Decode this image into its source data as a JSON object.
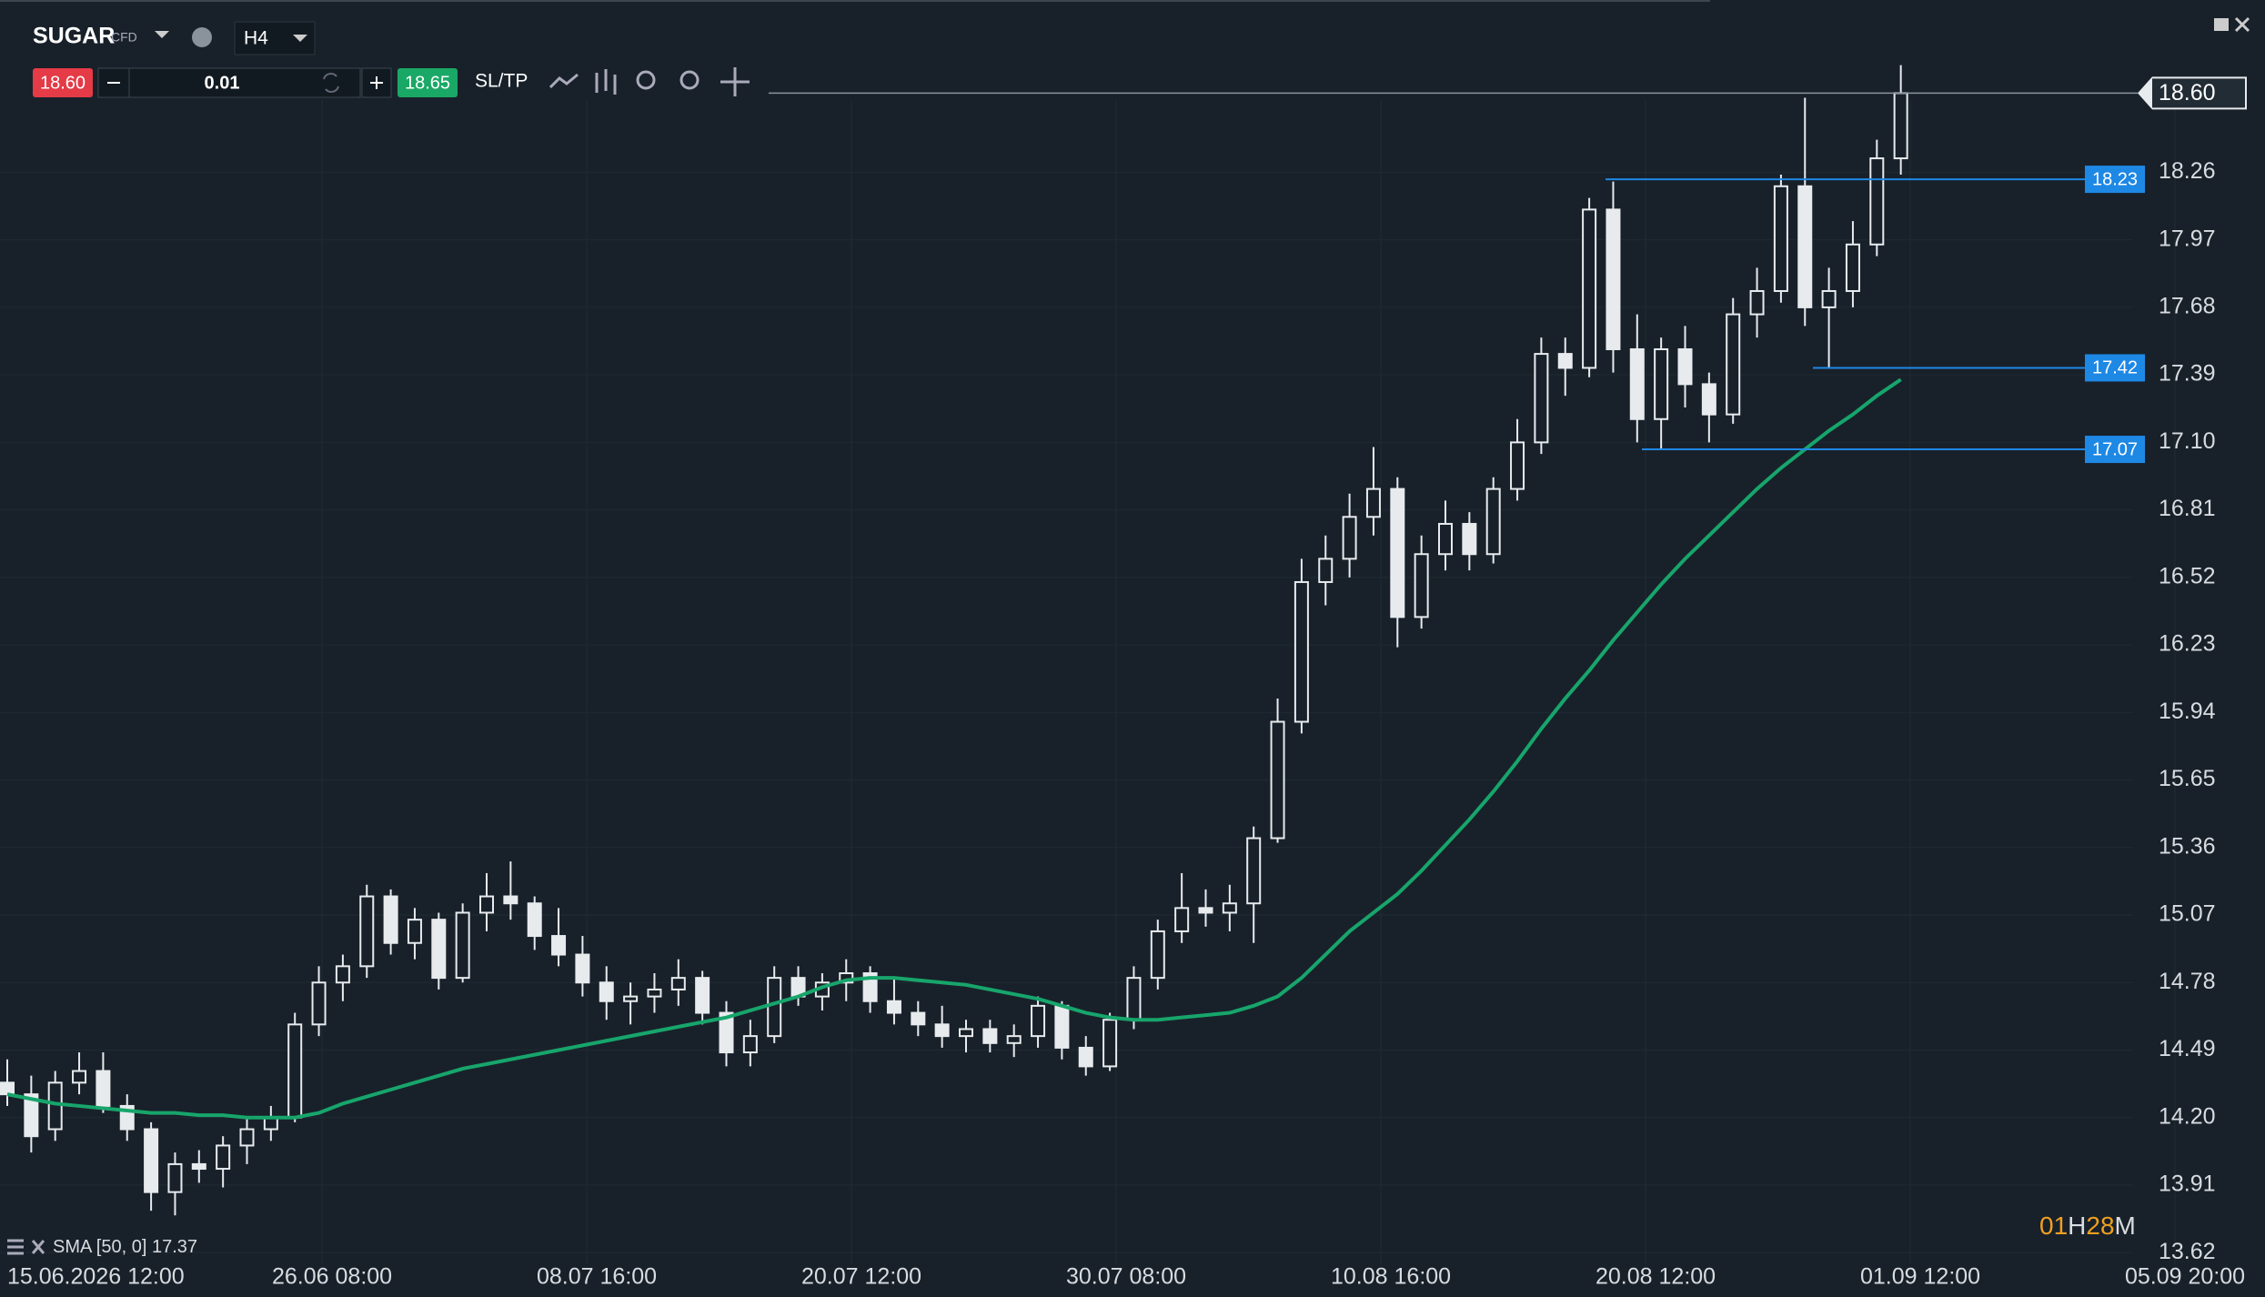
{
  "toolbar": {
    "symbol": "SUGAR",
    "symbol_type": "CFD",
    "timeframe": "H4",
    "sell_price": "18.60",
    "lot": "0.01",
    "buy_price": "18.65",
    "sltp": "SL/TP"
  },
  "timer": {
    "hours": "01",
    "h": "H",
    "minutes": "28",
    "m": "M"
  },
  "chart_data": {
    "type": "candlestick",
    "x_labels": [
      "15.06.2026 12:00",
      "26.06 08:00",
      "08.07 16:00",
      "20.07 12:00",
      "30.07 08:00",
      "10.08 16:00",
      "20.08 12:00",
      "01.09 12:00",
      "05.09 20:00"
    ],
    "ylim": [
      13.57,
      19.0
    ],
    "yticks": [
      13.62,
      13.91,
      {
        "value": 14.2,
        "label": "14.20"
      },
      14.49,
      14.78,
      15.07,
      15.36,
      15.65,
      15.94,
      16.23,
      16.52,
      16.81,
      {
        "value": 17.1,
        "label": "17.10"
      },
      17.39,
      17.68,
      17.97,
      18.26
    ],
    "grid": true,
    "up_color": "#e8ebee",
    "down_color": "#e8ebee",
    "candles": [
      [
        14.35,
        14.45,
        14.25,
        14.3
      ],
      [
        14.3,
        14.38,
        14.05,
        14.12
      ],
      [
        14.15,
        14.4,
        14.1,
        14.35
      ],
      [
        14.35,
        14.48,
        14.3,
        14.4
      ],
      [
        14.4,
        14.48,
        14.22,
        14.25
      ],
      [
        14.25,
        14.3,
        14.1,
        14.15
      ],
      [
        14.15,
        14.18,
        13.8,
        13.88
      ],
      [
        13.88,
        14.05,
        13.78,
        14.0
      ],
      [
        14.0,
        14.06,
        13.92,
        13.98
      ],
      [
        13.98,
        14.12,
        13.9,
        14.08
      ],
      [
        14.08,
        14.2,
        14.0,
        14.15
      ],
      [
        14.15,
        14.25,
        14.1,
        14.2
      ],
      [
        14.2,
        14.65,
        14.18,
        14.6
      ],
      [
        14.6,
        14.85,
        14.55,
        14.78
      ],
      [
        14.78,
        14.9,
        14.7,
        14.85
      ],
      [
        14.85,
        15.2,
        14.8,
        15.15
      ],
      [
        15.15,
        15.18,
        14.9,
        14.95
      ],
      [
        14.95,
        15.1,
        14.88,
        15.05
      ],
      [
        15.05,
        15.08,
        14.75,
        14.8
      ],
      [
        14.8,
        15.12,
        14.78,
        15.08
      ],
      [
        15.08,
        15.25,
        15.0,
        15.15
      ],
      [
        15.15,
        15.3,
        15.05,
        15.12
      ],
      [
        15.12,
        15.15,
        14.92,
        14.98
      ],
      [
        14.98,
        15.1,
        14.85,
        14.9
      ],
      [
        14.9,
        14.98,
        14.72,
        14.78
      ],
      [
        14.78,
        14.85,
        14.62,
        14.7
      ],
      [
        14.7,
        14.78,
        14.6,
        14.72
      ],
      [
        14.72,
        14.82,
        14.65,
        14.75
      ],
      [
        14.75,
        14.88,
        14.68,
        14.8
      ],
      [
        14.8,
        14.83,
        14.6,
        14.65
      ],
      [
        14.65,
        14.7,
        14.42,
        14.48
      ],
      [
        14.48,
        14.62,
        14.42,
        14.55
      ],
      [
        14.55,
        14.85,
        14.52,
        14.8
      ],
      [
        14.8,
        14.85,
        14.68,
        14.72
      ],
      [
        14.72,
        14.82,
        14.66,
        14.78
      ],
      [
        14.78,
        14.88,
        14.7,
        14.82
      ],
      [
        14.82,
        14.85,
        14.65,
        14.7
      ],
      [
        14.7,
        14.8,
        14.6,
        14.65
      ],
      [
        14.65,
        14.7,
        14.55,
        14.6
      ],
      [
        14.6,
        14.68,
        14.5,
        14.55
      ],
      [
        14.55,
        14.62,
        14.48,
        14.58
      ],
      [
        14.58,
        14.62,
        14.48,
        14.52
      ],
      [
        14.52,
        14.6,
        14.46,
        14.55
      ],
      [
        14.55,
        14.72,
        14.5,
        14.68
      ],
      [
        14.68,
        14.7,
        14.45,
        14.5
      ],
      [
        14.5,
        14.55,
        14.38,
        14.42
      ],
      [
        14.42,
        14.65,
        14.4,
        14.62
      ],
      [
        14.62,
        14.85,
        14.58,
        14.8
      ],
      [
        14.8,
        15.05,
        14.75,
        15.0
      ],
      [
        15.0,
        15.25,
        14.95,
        15.1
      ],
      [
        15.1,
        15.18,
        15.02,
        15.08
      ],
      [
        15.08,
        15.2,
        15.0,
        15.12
      ],
      [
        15.12,
        15.45,
        14.95,
        15.4
      ],
      [
        15.4,
        16.0,
        15.38,
        15.9
      ],
      [
        15.9,
        16.6,
        15.85,
        16.5
      ],
      [
        16.5,
        16.7,
        16.4,
        16.6
      ],
      [
        16.6,
        16.88,
        16.52,
        16.78
      ],
      [
        16.78,
        17.08,
        16.7,
        16.9
      ],
      [
        16.9,
        16.95,
        16.22,
        16.35
      ],
      [
        16.35,
        16.7,
        16.3,
        16.62
      ],
      [
        16.62,
        16.85,
        16.55,
        16.75
      ],
      [
        16.75,
        16.8,
        16.55,
        16.62
      ],
      [
        16.62,
        16.95,
        16.58,
        16.9
      ],
      [
        16.9,
        17.2,
        16.85,
        17.1
      ],
      [
        17.1,
        17.55,
        17.05,
        17.48
      ],
      [
        17.48,
        17.55,
        17.3,
        17.42
      ],
      [
        17.42,
        18.15,
        17.38,
        18.1
      ],
      [
        18.1,
        18.22,
        17.4,
        17.5
      ],
      [
        17.5,
        17.65,
        17.1,
        17.2
      ],
      [
        17.2,
        17.55,
        17.07,
        17.5
      ],
      [
        17.5,
        17.6,
        17.25,
        17.35
      ],
      [
        17.35,
        17.4,
        17.1,
        17.22
      ],
      [
        17.22,
        17.72,
        17.18,
        17.65
      ],
      [
        17.65,
        17.85,
        17.55,
        17.75
      ],
      [
        17.75,
        18.25,
        17.7,
        18.2
      ],
      [
        18.2,
        18.58,
        17.6,
        17.68
      ],
      [
        17.68,
        17.85,
        17.42,
        17.75
      ],
      [
        17.75,
        18.05,
        17.68,
        17.95
      ],
      [
        17.95,
        18.4,
        17.9,
        18.32
      ],
      [
        18.32,
        18.72,
        18.25,
        18.6
      ]
    ],
    "sma": {
      "name": "SMA [50, 0]",
      "color": "#17a56b",
      "values": [
        14.3,
        14.28,
        14.26,
        14.25,
        14.24,
        14.23,
        14.22,
        14.22,
        14.21,
        14.21,
        14.2,
        14.2,
        14.2,
        14.22,
        14.26,
        14.29,
        14.32,
        14.35,
        14.38,
        14.41,
        14.43,
        14.45,
        14.47,
        14.49,
        14.51,
        14.53,
        14.55,
        14.57,
        14.59,
        14.61,
        14.63,
        14.66,
        14.69,
        14.72,
        14.76,
        14.79,
        14.8,
        14.8,
        14.79,
        14.78,
        14.77,
        14.75,
        14.73,
        14.71,
        14.68,
        14.65,
        14.63,
        14.62,
        14.62,
        14.63,
        14.64,
        14.65,
        14.68,
        14.72,
        14.8,
        14.9,
        15.0,
        15.08,
        15.16,
        15.26,
        15.37,
        15.48,
        15.6,
        15.73,
        15.87,
        16.0,
        16.12,
        16.25,
        16.37,
        16.49,
        16.6,
        16.7,
        16.8,
        16.9,
        16.99,
        17.07,
        17.15,
        17.22,
        17.3,
        17.37
      ]
    },
    "levels": [
      18.23,
      17.42,
      17.07
    ],
    "level_color": "#1e88e5",
    "current_price": {
      "value": 18.6,
      "label": "18.60"
    }
  }
}
